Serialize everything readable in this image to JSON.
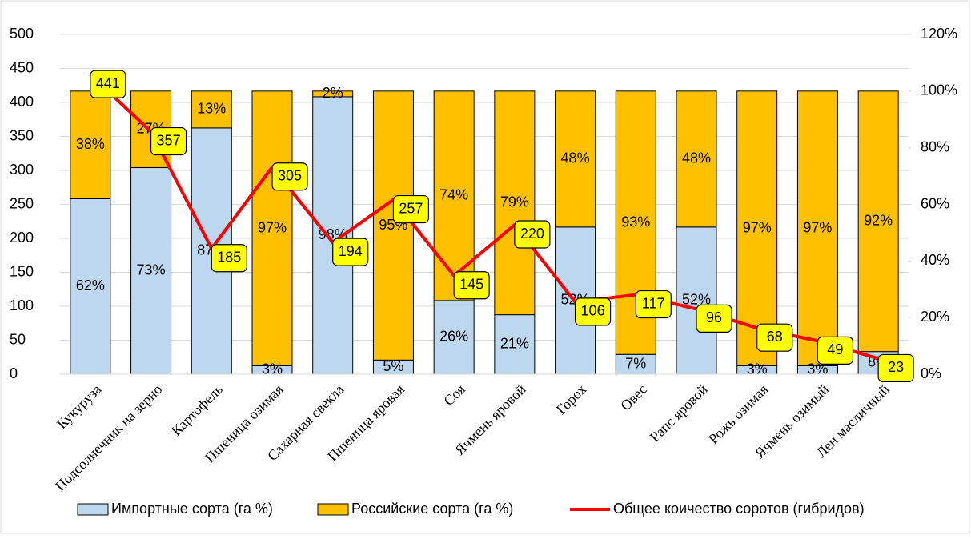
{
  "chart_data": {
    "type": "bar-line",
    "categories": [
      "Кукуруза",
      "Подсолнечник на зерно",
      "Картофель",
      "Пшеница озимая",
      "Сахарная свекла",
      "Пшеница яровая",
      "Соя",
      "Ячмень яровой",
      "Горох",
      "Овес",
      "Рапс яровой",
      "Рожь озимая",
      "Ячмень озимый",
      "Лен масличный"
    ],
    "series": [
      {
        "name": "Импортные сорта (га %)",
        "type": "bar",
        "axis": "y2",
        "color": "#bdd7ee",
        "values": [
          62,
          73,
          87,
          3,
          98,
          5,
          26,
          21,
          52,
          7,
          52,
          3,
          3,
          8
        ],
        "value_labels": [
          "62%",
          "73%",
          "87%",
          "3%",
          "98%",
          "5%",
          "26%",
          "21%",
          "52%",
          "7%",
          "52%",
          "3%",
          "3%",
          "8%"
        ]
      },
      {
        "name": "Российские сорта (га %)",
        "type": "bar",
        "axis": "y2",
        "color": "#ffc000",
        "values": [
          38,
          27,
          13,
          97,
          2,
          95,
          74,
          79,
          48,
          93,
          48,
          97,
          97,
          92
        ],
        "value_labels": [
          "38%",
          "27%",
          "13%",
          "97%",
          "2%",
          "95%",
          "74%",
          "79%",
          "48%",
          "93%",
          "48%",
          "97%",
          "97%",
          "92%"
        ]
      },
      {
        "name": "Общее коичество соротов (гибридов)",
        "type": "line",
        "axis": "y",
        "color": "#ff0000",
        "values": [
          441,
          357,
          185,
          305,
          194,
          257,
          145,
          220,
          106,
          117,
          96,
          68,
          49,
          23
        ]
      }
    ],
    "ylim": [
      0,
      500
    ],
    "yticks": [
      0,
      50,
      100,
      150,
      200,
      250,
      300,
      350,
      400,
      450,
      500
    ],
    "y2lim": [
      0,
      120
    ],
    "y2ticks": [
      {
        "value": 0,
        "label": "0%"
      },
      {
        "value": 20,
        "label": "20%"
      },
      {
        "value": 40,
        "label": "40%"
      },
      {
        "value": 60,
        "label": "60%"
      },
      {
        "value": 80,
        "label": "80%"
      },
      {
        "value": 100,
        "label": "100%"
      },
      {
        "value": 120,
        "label": "120%"
      }
    ],
    "grid": true,
    "legend": "bottom"
  }
}
